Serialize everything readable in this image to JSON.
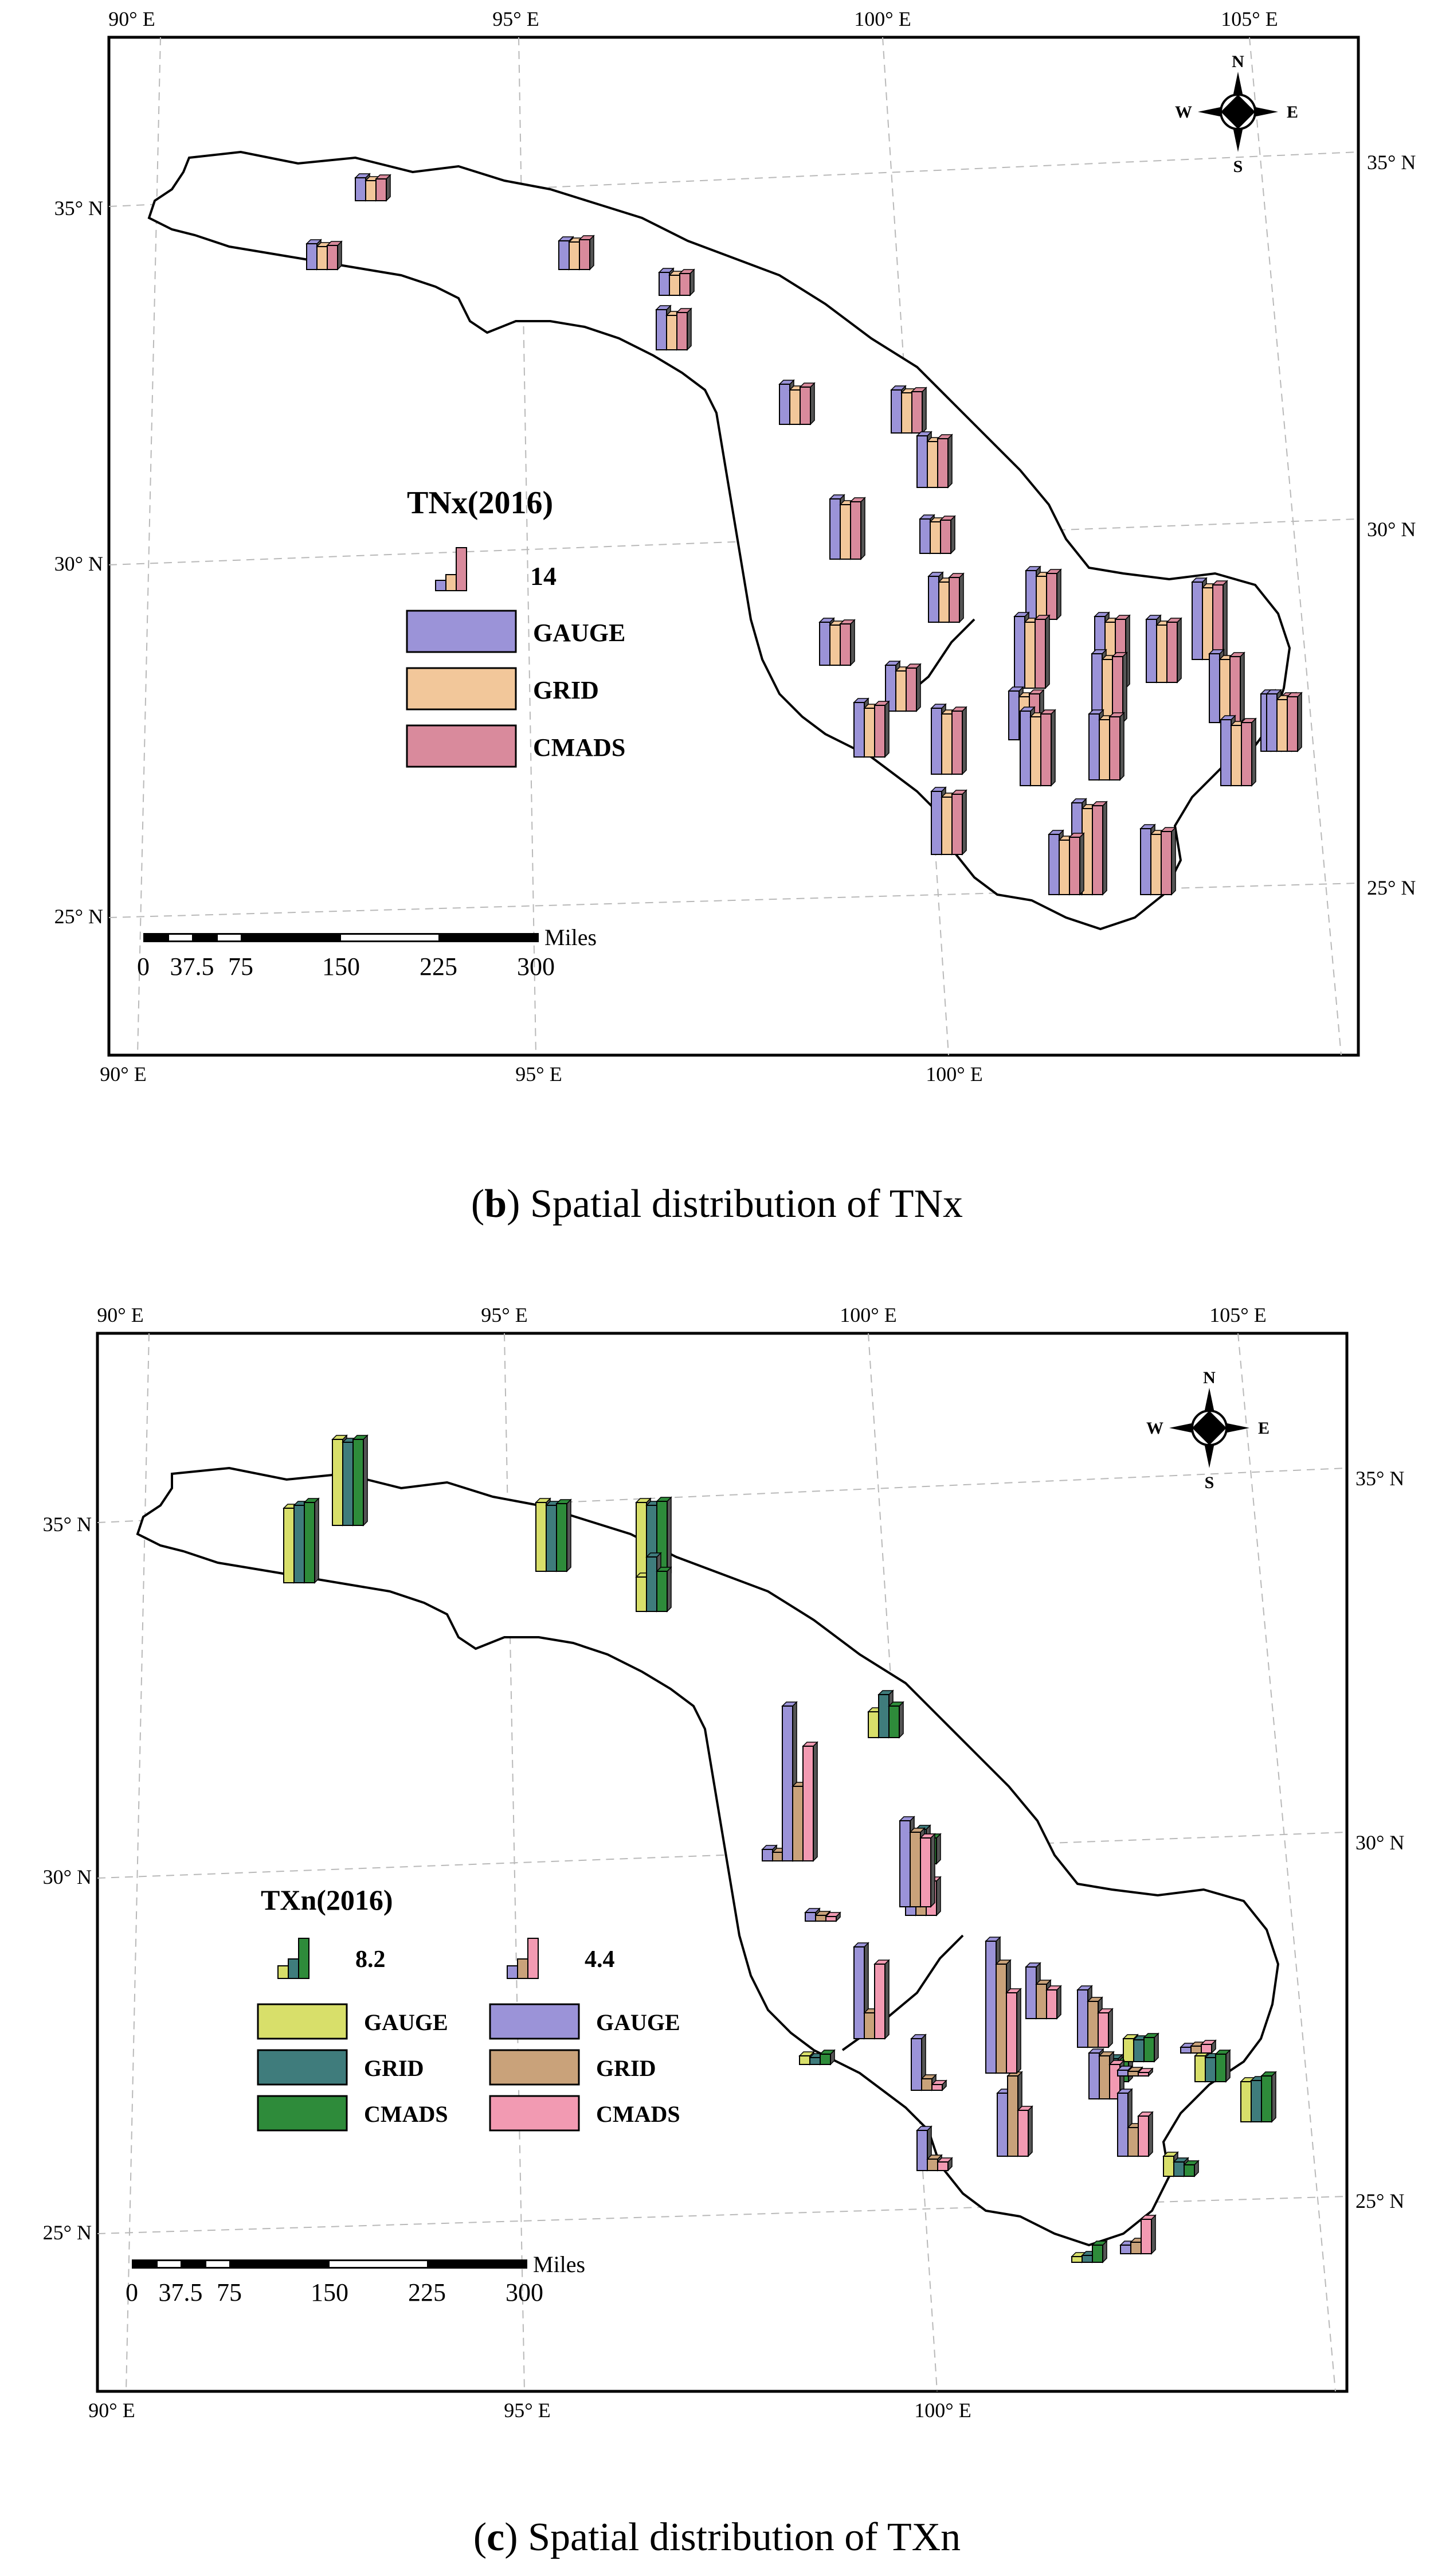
{
  "maps": [
    {
      "id": "b",
      "legend_title": "TNx(2016)",
      "legend_scale_values": [
        "14"
      ],
      "legend_items": [
        {
          "label": "GAUGE",
          "color": "#9b93d8"
        },
        {
          "label": "GRID",
          "color": "#f2c79a"
        },
        {
          "label": "CMADS",
          "color": "#d98a9c"
        }
      ],
      "caption_letter": "b",
      "caption_text": "Spatial distribution of TNx",
      "top_lon_labels": [
        "90° E",
        "95° E",
        "100° E",
        "105° E"
      ],
      "bottom_lon_labels": [
        "90° E",
        "95° E",
        "100° E"
      ],
      "left_lat_labels": [
        "35° N",
        "30° N",
        "25° N"
      ],
      "right_lat_labels": [
        "35° N",
        "30° N",
        "25° N"
      ],
      "scale_unit": "Miles",
      "scale_ticks": [
        "0",
        "37.5",
        "75",
        "150",
        "225",
        "300"
      ],
      "north_arrow": {
        "n": "N",
        "s": "S",
        "e": "E",
        "w": "W"
      }
    },
    {
      "id": "c",
      "legend_title": "TXn(2016)",
      "legend_scale_values": [
        "8.2",
        "4.4"
      ],
      "legend_items": [
        {
          "label": "GAUGE",
          "color": "#d8df6a"
        },
        {
          "label": "GRID",
          "color": "#3f7c7c"
        },
        {
          "label": "CMADS",
          "color": "#2e8b3a"
        },
        {
          "label": "GAUGE",
          "color": "#9b93d8"
        },
        {
          "label": "GRID",
          "color": "#c9a27a"
        },
        {
          "label": "CMADS",
          "color": "#f29ab2"
        }
      ],
      "caption_letter": "c",
      "caption_text": "Spatial distribution of TXn",
      "top_lon_labels": [
        "90° E",
        "95° E",
        "100° E",
        "105° E"
      ],
      "bottom_lon_labels": [
        "90° E",
        "95° E",
        "100° E"
      ],
      "left_lat_labels": [
        "35° N",
        "30° N",
        "25° N"
      ],
      "right_lat_labels": [
        "35° N",
        "30° N",
        "25° N"
      ],
      "scale_unit": "Miles",
      "scale_ticks": [
        "0",
        "37.5",
        "75",
        "150",
        "225",
        "300"
      ],
      "north_arrow": {
        "n": "N",
        "s": "S",
        "e": "E",
        "w": "W"
      }
    }
  ]
}
